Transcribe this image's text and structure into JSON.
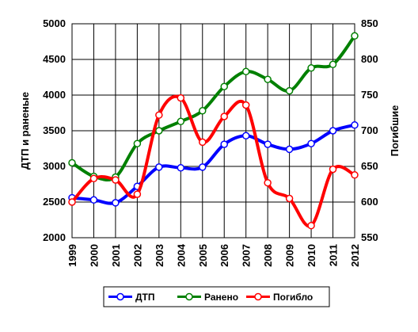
{
  "chart_data": {
    "type": "line",
    "categories": [
      "1999",
      "2000",
      "2001",
      "2002",
      "2003",
      "2004",
      "2005",
      "2006",
      "2007",
      "2008",
      "2009",
      "2010",
      "2011",
      "2012"
    ],
    "y_left": {
      "label": "ДТП и раненые",
      "min": 2000,
      "max": 5000,
      "ticks": [
        2000,
        2500,
        3000,
        3500,
        4000,
        4500,
        5000
      ]
    },
    "y_right": {
      "label": "Погибшие",
      "min": 550,
      "max": 850,
      "ticks": [
        550,
        600,
        650,
        700,
        750,
        800,
        850
      ]
    },
    "grid": true,
    "legend_position": "bottom",
    "series": [
      {
        "name": "ДТП",
        "axis": "left",
        "color": "#0000ff",
        "values": [
          2560,
          2530,
          2490,
          2720,
          2990,
          2980,
          2990,
          3310,
          3430,
          3310,
          3240,
          3320,
          3500,
          3580
        ]
      },
      {
        "name": "Ранено",
        "axis": "left",
        "color": "#008000",
        "values": [
          3050,
          2860,
          2850,
          3320,
          3500,
          3630,
          3780,
          4120,
          4330,
          4220,
          4060,
          4380,
          4430,
          4830
        ]
      },
      {
        "name": "Погибло",
        "axis": "right",
        "color": "#ff0000",
        "values": [
          600,
          633,
          631,
          611,
          722,
          746,
          684,
          720,
          736,
          627,
          605,
          567,
          646,
          638
        ]
      }
    ]
  }
}
